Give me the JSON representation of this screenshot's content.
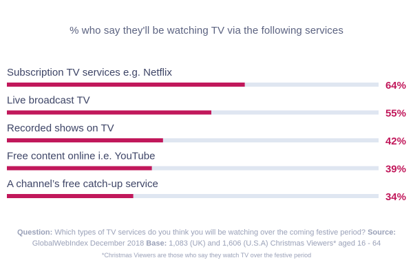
{
  "chart_data": {
    "type": "bar",
    "orientation": "horizontal",
    "title": "% who say they'll be watching TV via the following services",
    "categories": [
      "Subscription TV services e.g. Netflix",
      "Live broadcast TV",
      "Recorded shows on TV",
      "Free content online i.e. YouTube",
      "A channel’s free catch-up service"
    ],
    "values": [
      64,
      55,
      42,
      39,
      34
    ],
    "value_labels": [
      "64%",
      "55%",
      "42%",
      "39%",
      "34%"
    ],
    "xlim": [
      0,
      100
    ],
    "grid": false,
    "legend": "none"
  },
  "colors": {
    "bar": "#c1185b",
    "track": "#dfe6f1",
    "label": "#3d4466",
    "value": "#c1185b",
    "title": "#5b6280",
    "footer": "#9aa1b8"
  },
  "footer": {
    "question_label": "Question:",
    "question_text": "Which types of TV services do you think you will be watching over the coming festive period?",
    "source_label": "Source:",
    "source_text": "GlobalWebIndex December 2018",
    "base_label": "Base:",
    "base_text": "1,083 (UK) and 1,606 (U.S.A) Christmas Viewers* aged 16 - 64",
    "footnote": "*Christmas Viewers are those who say they watch TV over the festive period"
  }
}
